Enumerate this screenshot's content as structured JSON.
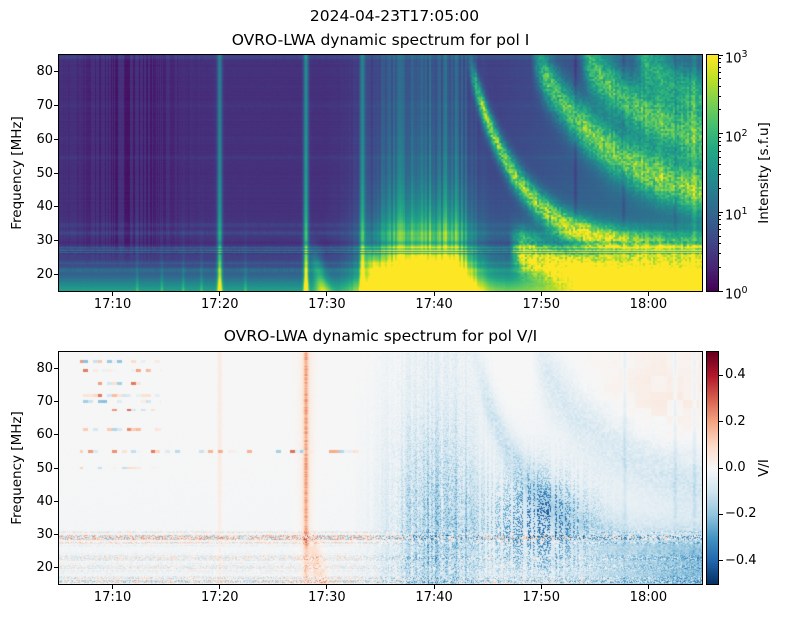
{
  "figure": {
    "suptitle": "2024-04-23T17:05:00",
    "background": "#ffffff",
    "text_color": "#000000"
  },
  "colormaps": {
    "viridis": [
      "#440154",
      "#482475",
      "#414487",
      "#355f8d",
      "#2a788e",
      "#21918c",
      "#22a884",
      "#44bf70",
      "#7ad151",
      "#bddf26",
      "#fde725"
    ],
    "rdbu_r": [
      "#053061",
      "#2166ac",
      "#4393c3",
      "#92c5de",
      "#d1e5f0",
      "#f7f7f7",
      "#fddbc7",
      "#f4a582",
      "#d6604d",
      "#b2182b",
      "#67001f"
    ]
  },
  "chart_data": [
    {
      "id": "pol_i",
      "type": "heatmap",
      "title": "OVRO-LWA dynamic spectrum for pol I",
      "ylabel": "Frequency [MHz]",
      "x_start_time": "17:05",
      "x_end_time": "18:05",
      "x_ticks": [
        {
          "label": "17:10",
          "minute": 5
        },
        {
          "label": "17:20",
          "minute": 15
        },
        {
          "label": "17:30",
          "minute": 25
        },
        {
          "label": "17:40",
          "minute": 35
        },
        {
          "label": "17:50",
          "minute": 45
        },
        {
          "label": "18:00",
          "minute": 55
        }
      ],
      "y_ticks": [
        20,
        30,
        40,
        50,
        60,
        70,
        80
      ],
      "y_range": [
        15,
        85
      ],
      "colorbar": {
        "label": "Intensity [s.f.u]",
        "scale": "log",
        "vmin": 1,
        "vmax": 1000,
        "colormap": "viridis",
        "ticks": [
          {
            "base": "10",
            "exp": "3",
            "value": 1000
          },
          {
            "base": "10",
            "exp": "2",
            "value": 100
          },
          {
            "base": "10",
            "exp": "1",
            "value": 10
          },
          {
            "base": "10",
            "exp": "0",
            "value": 1
          }
        ]
      },
      "features": {
        "base_level": 0.36,
        "log_max": 3,
        "lowfreq_glow": {
          "amp": 0.85,
          "scale": 6.0
        },
        "bottom_band": {
          "center": 15.5,
          "amp": 0.45,
          "sigma": 3.0
        },
        "rfi_lines": [
          [
            26.4,
            0.5,
            0.25
          ],
          [
            27.1,
            0.55,
            0.25
          ],
          [
            27.8,
            0.45,
            0.25
          ],
          [
            23.3,
            0.2,
            0.3
          ],
          [
            21.2,
            0.28,
            0.5
          ],
          [
            32.2,
            0.22,
            0.45
          ],
          [
            34.6,
            0.12,
            0.5
          ],
          [
            54.6,
            0.09,
            0.35
          ],
          [
            60.3,
            0.07,
            0.35
          ],
          [
            69.8,
            0.06,
            0.3
          ],
          [
            84.3,
            0.2,
            0.5
          ]
        ],
        "dark_lines": [
          [
            26.05,
            0.12,
            0.5
          ],
          [
            26.75,
            0.1,
            0.45
          ],
          [
            27.45,
            0.12,
            0.5
          ],
          [
            29.2,
            0.5,
            0.22
          ]
        ],
        "dark_stripes": {
          "t_center": 6.5,
          "t_sigma": 3.2,
          "depth": 0.2
        },
        "minor_bursts": [
          7.3,
          9.6,
          11.6,
          13.3,
          17.4
        ],
        "type3_bursts": [
          {
            "t": 15.0,
            "amp": 0.8,
            "drift": false
          },
          {
            "t": 23.05,
            "amp": 0.95,
            "drift": true
          },
          {
            "t": 28.3,
            "amp": 0.75,
            "drift": true
          }
        ],
        "main_event": {
          "t1": 32.3,
          "s1": 2.6,
          "t2": 36.6,
          "s2": 1.8,
          "low_amp": 2.7,
          "streak_amp": 1.0
        },
        "post_start": 37.5,
        "lanes": [
          {
            "t0": 38.0,
            "f_base": 26,
            "f_amp": 60,
            "tau": 4.8,
            "sigma": 3.2,
            "amp": 2.0
          },
          {
            "t0": 44.0,
            "f_base": 38,
            "f_amp": 48,
            "tau": 8.0,
            "sigma": 5.0,
            "amp": 1.7
          },
          {
            "t0": 48.5,
            "f_base": 52,
            "f_amp": 34,
            "tau": 8.0,
            "sigma": 5.5,
            "amp": 1.5
          },
          {
            "t0": 53.5,
            "f_base": 64,
            "f_amp": 22,
            "tau": 7.0,
            "sigma": 5.0,
            "amp": 1.1
          },
          {
            "t0": 42.0,
            "f_base": 14,
            "f_amp": 14,
            "tau": 10.0,
            "sigma": 4.0,
            "amp": 2.4
          }
        ],
        "corner_patch": {
          "t": 57.0,
          "f": 16.5,
          "amp": 1.5
        },
        "artifact_vlines": [
          48.2,
          52.7,
          57.5
        ],
        "bright_vline": 59.3
      }
    },
    {
      "id": "pol_vi",
      "type": "heatmap",
      "title": "OVRO-LWA dynamic spectrum for pol V/I",
      "ylabel": "Frequency [MHz]",
      "x_start_time": "17:05",
      "x_end_time": "18:05",
      "x_ticks": [
        {
          "label": "17:10",
          "minute": 5
        },
        {
          "label": "17:20",
          "minute": 15
        },
        {
          "label": "17:30",
          "minute": 25
        },
        {
          "label": "17:40",
          "minute": 35
        },
        {
          "label": "17:50",
          "minute": 45
        },
        {
          "label": "18:00",
          "minute": 55
        }
      ],
      "y_ticks": [
        20,
        30,
        40,
        50,
        60,
        70,
        80
      ],
      "y_range": [
        15,
        85
      ],
      "colorbar": {
        "label": "V/I",
        "scale": "linear",
        "vmin": -0.5,
        "vmax": 0.5,
        "colormap": "rdbu_r",
        "ticks": [
          {
            "label": "0.4",
            "value": 0.4
          },
          {
            "label": "0.2",
            "value": 0.2
          },
          {
            "label": "0.0",
            "value": 0.0
          },
          {
            "label": "−0.2",
            "value": -0.2
          },
          {
            "label": "−0.4",
            "value": -0.4
          }
        ]
      },
      "features": {
        "lowfreq_blue_tint": 0.02,
        "speckle_bands": [
          [
            28.9,
            1.4,
            0.5
          ],
          [
            22.8,
            1.1,
            0.26
          ],
          [
            19.8,
            0.9,
            0.24
          ],
          [
            15.8,
            1.2,
            0.42
          ]
        ],
        "band_red_bias": 0.02,
        "dotted_rows": [
          82,
          79.5,
          75.5,
          72,
          70,
          67.5,
          61.5,
          55,
          50
        ],
        "dotted_t_range": [
          2,
          9.5
        ],
        "extended_row": 55,
        "orange_vline": {
          "t": 23.05,
          "amp": 0.16
        },
        "orange_vline_drift_amp": 0.1,
        "faint_vline": {
          "t": 15.0,
          "amp": 0.045
        },
        "blue_streaks": {
          "t1": 34.0,
          "s1": 2.6,
          "t2": 37.5,
          "s2": 1.5,
          "amp": 0.13
        },
        "blue_lanes": [
          {
            "t0": 38.5,
            "f_base": 26,
            "f_amp": 60,
            "tau": 4.8,
            "sigma": 5.0,
            "amp": 0.12
          },
          {
            "t0": 44.0,
            "f_base": 38,
            "f_amp": 48,
            "tau": 8.0,
            "sigma": 7.0,
            "amp": 0.1
          }
        ],
        "dash_cluster": {
          "t": 44.5,
          "ts": 3.5,
          "f": 33,
          "fs": 11,
          "amp": 0.3
        },
        "bottom_right": {
          "t_start": 44.0,
          "amp": 0.14
        },
        "corner_blob": {
          "t_start": 50.0,
          "f": 18.0,
          "amp": 0.13
        },
        "topright_orange": {
          "t_start": 46.0,
          "f": 70.0,
          "fs": 13.0,
          "amp": 0.05
        },
        "blue_vlines": [
          52.8,
          57.5,
          59.3
        ]
      }
    }
  ]
}
